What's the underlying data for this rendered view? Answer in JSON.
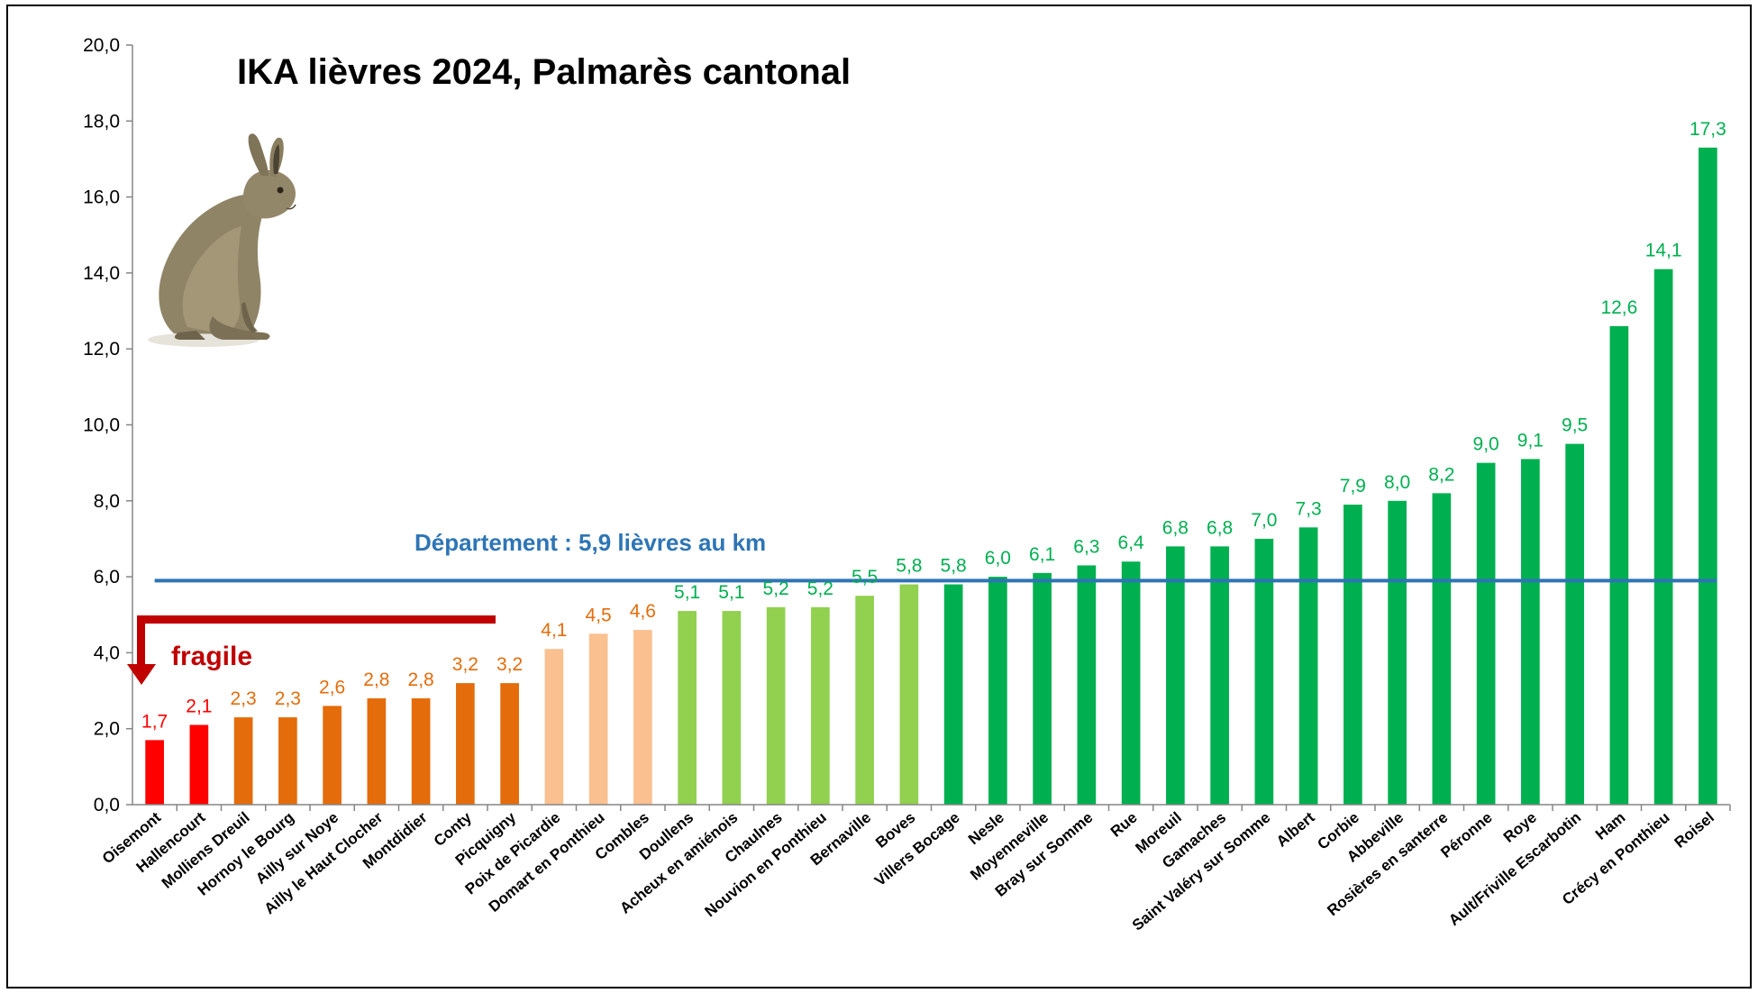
{
  "chart_data": {
    "type": "bar",
    "title": "IKA lièvres 2024, Palmarès cantonal",
    "xlabel": "",
    "ylabel": "",
    "ylim": [
      0,
      20
    ],
    "yticks": [
      "0,0",
      "2,0",
      "4,0",
      "6,0",
      "8,0",
      "10,0",
      "12,0",
      "14,0",
      "16,0",
      "18,0",
      "20,0"
    ],
    "grid": false,
    "legend": "none",
    "categories": [
      "Oisemont",
      "Hallencourt",
      "Molliens Dreuil",
      "Hornoy le Bourg",
      "Ailly sur Noye",
      "Ailly le Haut Clocher",
      "Montdidier",
      "Conty",
      "Picquigny",
      "Poix de Picardie",
      "Domart en Ponthieu",
      "Combles",
      "Doullens",
      "Acheux en amiénois",
      "Chaulnes",
      "Nouvion en Ponthieu",
      "Bernaville",
      "Boves",
      "Villers Bocage",
      "Nesle",
      "Moyenneville",
      "Bray sur Somme",
      "Rue",
      "Moreuil",
      "Gamaches",
      "Saint Valéry sur Somme",
      "Albert",
      "Corbie",
      "Abbeville",
      "Rosières en santerre",
      "Péronne",
      "Roye",
      "Ault/Friville Escarbotin",
      "Ham",
      "Crécy en Ponthieu",
      "Roisel"
    ],
    "values": [
      1.7,
      2.1,
      2.3,
      2.3,
      2.6,
      2.8,
      2.8,
      3.2,
      3.2,
      4.1,
      4.5,
      4.6,
      5.1,
      5.1,
      5.2,
      5.2,
      5.5,
      5.8,
      5.8,
      6.0,
      6.1,
      6.3,
      6.4,
      6.8,
      6.8,
      7.0,
      7.3,
      7.9,
      8.0,
      8.2,
      9.0,
      9.1,
      9.5,
      12.6,
      14.1,
      17.3
    ],
    "value_labels": [
      "1,7",
      "2,1",
      "2,3",
      "2,3",
      "2,6",
      "2,8",
      "2,8",
      "3,2",
      "3,2",
      "4,1",
      "4,5",
      "4,6",
      "5,1",
      "5,1",
      "5,2",
      "5,2",
      "5,5",
      "5,8",
      "5,8",
      "6,0",
      "6,1",
      "6,3",
      "6,4",
      "6,8",
      "6,8",
      "7,0",
      "7,3",
      "7,9",
      "8,0",
      "8,2",
      "9,0",
      "9,1",
      "9,5",
      "12,6",
      "14,1",
      "17,3"
    ],
    "bar_color_groups": {
      "red": {
        "bar": "#ff0000",
        "label": "#ff0000",
        "indices": [
          0,
          1
        ]
      },
      "orange": {
        "bar": "#e46c0a",
        "label": "#e46c0a",
        "indices": [
          2,
          3,
          4,
          5,
          6,
          7,
          8
        ]
      },
      "peach": {
        "bar": "#fac090",
        "label": "#e46c0a",
        "indices": [
          9,
          10,
          11
        ]
      },
      "light-green": {
        "bar": "#92d050",
        "label": "#00b050",
        "indices": [
          12,
          13,
          14,
          15,
          16,
          17
        ]
      },
      "green": {
        "bar": "#00b050",
        "label": "#00b050",
        "indices": [
          18,
          19,
          20,
          21,
          22,
          23,
          24,
          25,
          26,
          27,
          28,
          29,
          30,
          31,
          32,
          33,
          34,
          35
        ]
      }
    },
    "reference_line": {
      "value": 5.9,
      "label": "Département : 5,9 lièvres au km",
      "color": "#2e75b6"
    },
    "annotation": {
      "text": "fragile",
      "color": "#c00000",
      "icon": "hare-illustration"
    }
  }
}
